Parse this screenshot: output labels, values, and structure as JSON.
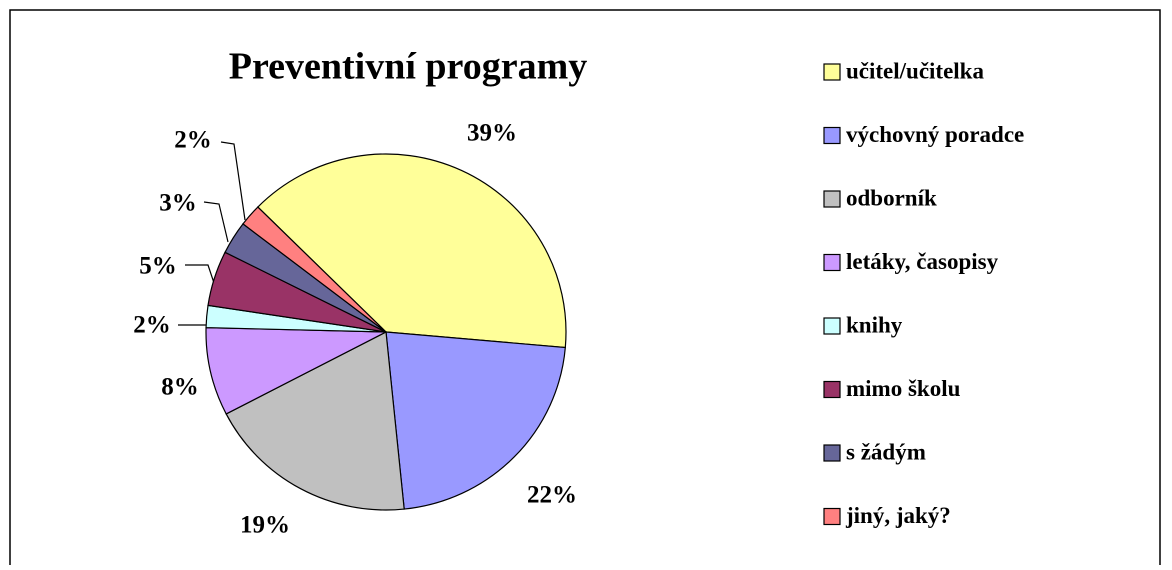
{
  "chart_data": {
    "type": "pie",
    "title": "Preventivní programy",
    "categories": [
      "učitel/učitelka",
      "výchovný poradce",
      "odborník",
      "letáky, časopisy",
      "knihy",
      "mimo školu",
      "s žádým",
      "jiný, jaký?"
    ],
    "values": [
      39,
      22,
      19,
      8,
      2,
      5,
      3,
      2
    ],
    "value_labels": [
      "39%",
      "22%",
      "19%",
      "8%",
      "2%",
      "5%",
      "3%",
      "2%"
    ],
    "colors": [
      "#ffff99",
      "#9999ff",
      "#c0c0c0",
      "#cc99ff",
      "#ccffff",
      "#993366",
      "#666699",
      "#ff8080"
    ],
    "legend": "right"
  }
}
